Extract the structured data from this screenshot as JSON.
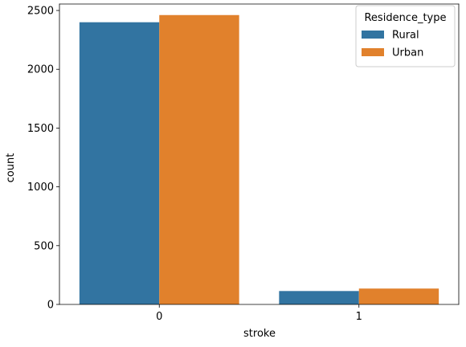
{
  "chart_data": {
    "type": "bar",
    "title": "",
    "xlabel": "stroke",
    "ylabel": "count",
    "categories": [
      "0",
      "1"
    ],
    "series": [
      {
        "name": "Rural",
        "values": [
          2400,
          114
        ],
        "color": "#3274a1"
      },
      {
        "name": "Urban",
        "values": [
          2461,
          135
        ],
        "color": "#e1812c"
      }
    ],
    "ylim": [
      0,
      2555
    ],
    "yticks": [
      0,
      500,
      1000,
      1500,
      2000,
      2500
    ],
    "legend": {
      "title": "Residence_type",
      "placement": "top-right"
    },
    "grid": false
  }
}
